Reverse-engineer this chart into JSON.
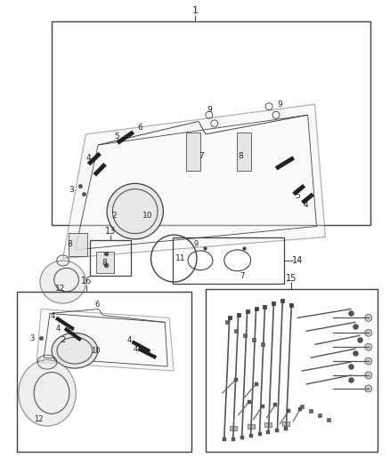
{
  "bg_color": "#ffffff",
  "line_color": "#404040",
  "label_color": "#222222",
  "figsize": [
    4.38,
    5.33
  ],
  "dpi": 100
}
